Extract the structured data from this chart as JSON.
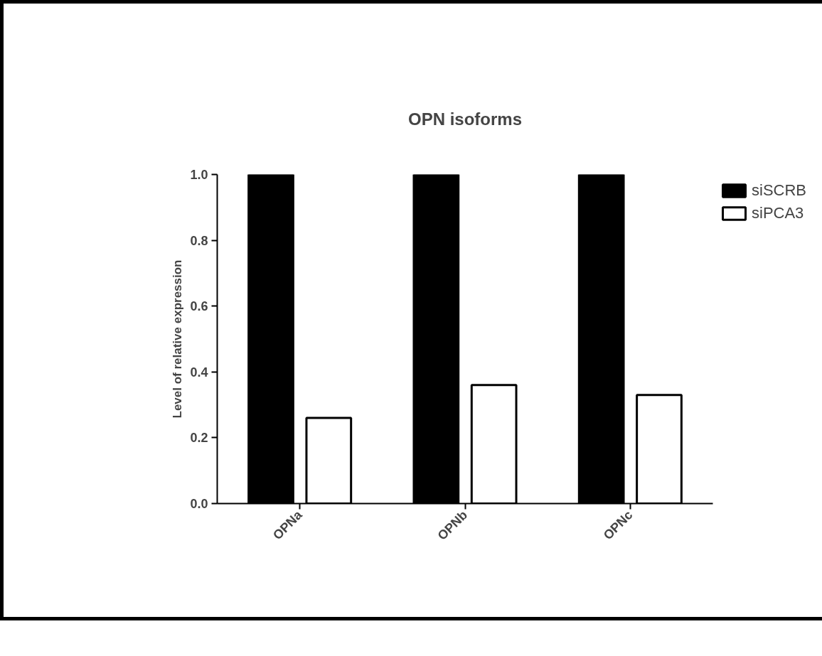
{
  "chart_data": {
    "type": "bar",
    "title": "OPN isoforms",
    "ylabel": "Level of relative expression",
    "categories": [
      "OPNa",
      "OPNb",
      "OPNc"
    ],
    "series": [
      {
        "name": "siSCRB",
        "color": "#000000",
        "values": [
          1.0,
          1.0,
          1.0
        ]
      },
      {
        "name": "siPCA3",
        "color": "#ffffff",
        "values": [
          0.26,
          0.36,
          0.33
        ]
      }
    ],
    "ylim": [
      0,
      1.0
    ],
    "yticks": [
      {
        "value": 0,
        "label": "0.0"
      },
      0.2,
      0.4,
      0.6,
      0.8,
      {
        "value": 1,
        "label": "1.0"
      }
    ],
    "grid": false,
    "legend": "top right"
  }
}
